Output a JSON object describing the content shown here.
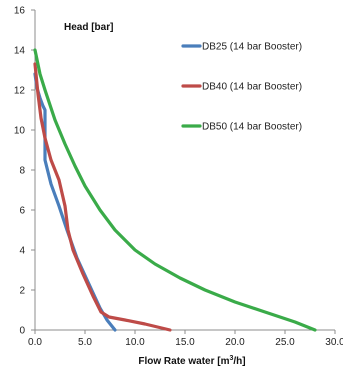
{
  "chart_data": {
    "type": "line",
    "xlabel_pre": "Flow Rate water [m",
    "xlabel_sup": "3",
    "xlabel_post": "/h]",
    "ylabel": "Head [bar]",
    "xlim": [
      0,
      30
    ],
    "ylim": [
      0,
      16
    ],
    "xticks": [
      "0.0",
      "5.0",
      "10.0",
      "15.0",
      "20.0",
      "25.0",
      "30.0"
    ],
    "yticks": [
      "0",
      "2",
      "4",
      "6",
      "8",
      "10",
      "12",
      "14",
      "16"
    ],
    "grid": false,
    "legend_position": "top-right",
    "series": [
      {
        "name": "DB25 (14 bar Booster)",
        "color": "#4a7ebb",
        "points": [
          [
            0,
            12.8
          ],
          [
            0.2,
            12.1
          ],
          [
            0.5,
            11.6
          ],
          [
            0.8,
            11.2
          ],
          [
            1.0,
            11.0
          ],
          [
            1.0,
            9.8
          ],
          [
            1.0,
            8.5
          ],
          [
            1.6,
            7.3
          ],
          [
            2.4,
            6.2
          ],
          [
            3.2,
            5.0
          ],
          [
            4.2,
            3.6
          ],
          [
            5.3,
            2.4
          ],
          [
            6.5,
            1.1
          ],
          [
            7.2,
            0.5
          ],
          [
            8.0,
            0.0
          ]
        ]
      },
      {
        "name": "DB40 (14 bar Booster)",
        "color": "#be4b48",
        "points": [
          [
            0,
            13.3
          ],
          [
            0.3,
            11.8
          ],
          [
            0.6,
            10.6
          ],
          [
            1.0,
            9.6
          ],
          [
            1.6,
            8.5
          ],
          [
            2.4,
            7.5
          ],
          [
            3.0,
            6.2
          ],
          [
            3.3,
            5.0
          ],
          [
            3.8,
            4.0
          ],
          [
            4.8,
            2.8
          ],
          [
            5.8,
            1.7
          ],
          [
            6.6,
            0.9
          ],
          [
            7.4,
            0.65
          ],
          [
            9.0,
            0.5
          ],
          [
            11.0,
            0.3
          ],
          [
            13.5,
            0.0
          ]
        ]
      },
      {
        "name": "DB50 (14 bar Booster)",
        "color": "#3aab49",
        "points": [
          [
            0,
            14.0
          ],
          [
            0.5,
            12.8
          ],
          [
            1.0,
            12.0
          ],
          [
            2.0,
            10.5
          ],
          [
            3.0,
            9.3
          ],
          [
            4.0,
            8.2
          ],
          [
            5.0,
            7.2
          ],
          [
            6.5,
            6.0
          ],
          [
            8.0,
            5.0
          ],
          [
            10.0,
            4.0
          ],
          [
            12.0,
            3.3
          ],
          [
            14.5,
            2.6
          ],
          [
            17.0,
            2.0
          ],
          [
            20.0,
            1.4
          ],
          [
            23.0,
            0.9
          ],
          [
            26.0,
            0.4
          ],
          [
            28.0,
            0.0
          ]
        ]
      }
    ]
  }
}
